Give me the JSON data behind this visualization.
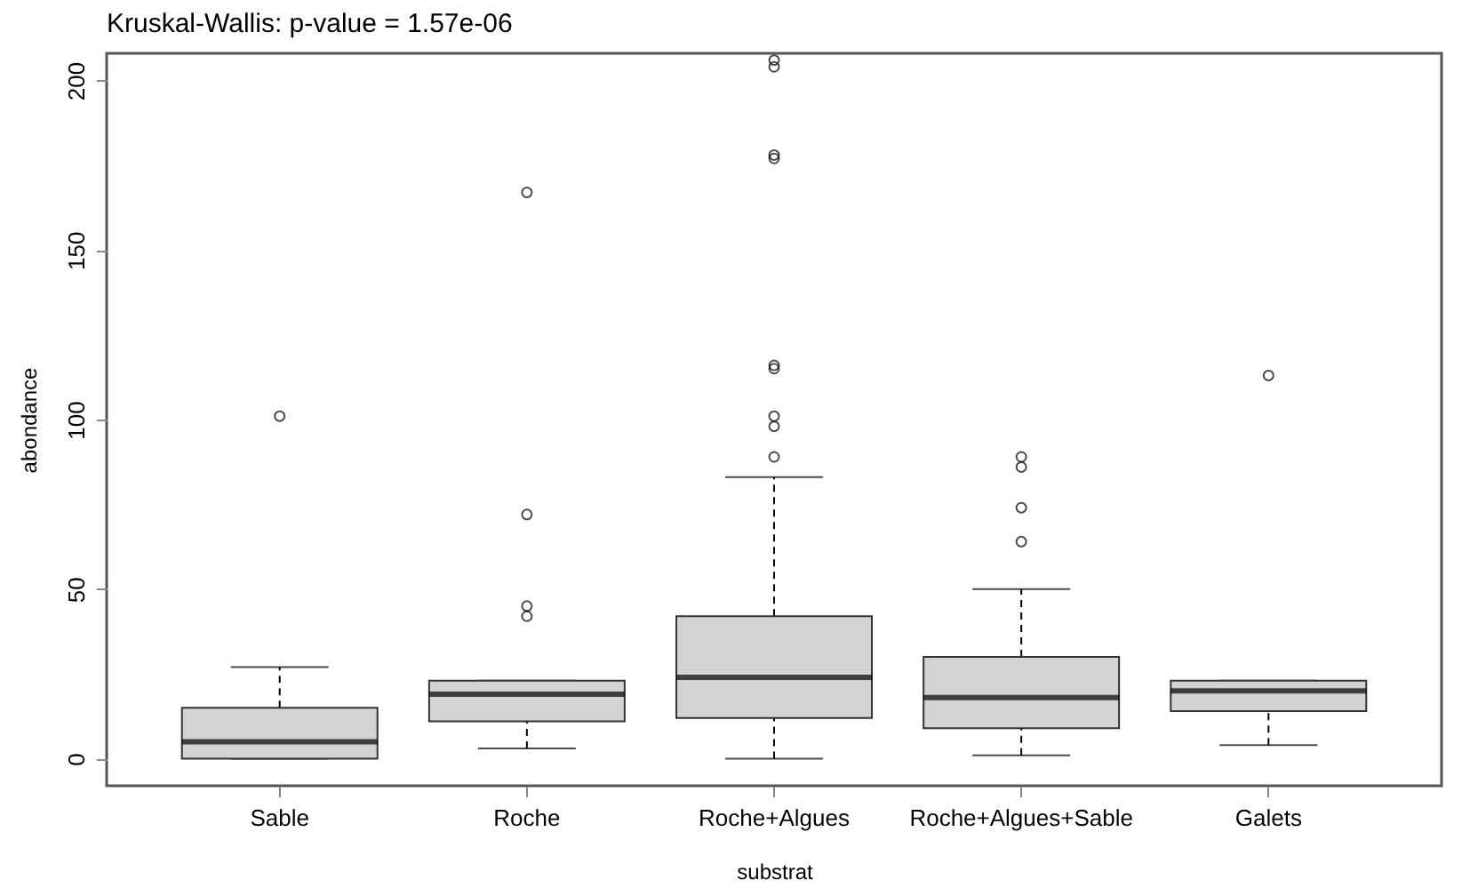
{
  "chart_data": {
    "type": "box",
    "title": "Kruskal-Wallis: p-value = 1.57e-06",
    "xlabel": "substrat",
    "ylabel": "abondance",
    "categories": [
      "Sable",
      "Roche",
      "Roche+Algues",
      "Roche+Algues+Sable",
      "Galets"
    ],
    "ylim": [
      -8,
      208
    ],
    "yticks": [
      0,
      50,
      100,
      150,
      200
    ],
    "boxes": [
      {
        "low": 0,
        "q1": 0,
        "median": 5,
        "q3": 15,
        "high": 27,
        "outliers": [
          101
        ]
      },
      {
        "low": 3,
        "q1": 11,
        "median": 19,
        "q3": 23,
        "high": 23,
        "outliers": [
          167,
          72,
          45,
          42
        ]
      },
      {
        "low": 0,
        "q1": 12,
        "median": 24,
        "q3": 42,
        "high": 83,
        "outliers": [
          206,
          204,
          178,
          177,
          116,
          115,
          101,
          98,
          89
        ]
      },
      {
        "low": 1,
        "q1": 9,
        "median": 18,
        "q3": 30,
        "high": 50,
        "outliers": [
          89,
          86,
          74,
          64
        ]
      },
      {
        "low": 4,
        "q1": 14,
        "median": 20,
        "q3": 23,
        "high": 23,
        "outliers": [
          113
        ]
      }
    ]
  }
}
